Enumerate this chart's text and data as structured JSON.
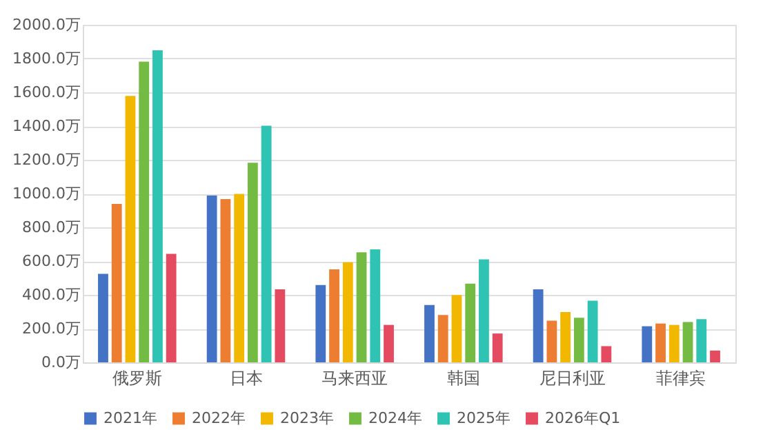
{
  "chart_data": {
    "type": "bar",
    "categories": [
      "俄罗斯",
      "日本",
      "马来西亚",
      "韩国",
      "尼日利亚",
      "菲律宾"
    ],
    "series": [
      {
        "name": "2021年",
        "color": "#4472c4",
        "values": [
          525,
          989,
          458,
          340,
          433,
          214
        ]
      },
      {
        "name": "2022年",
        "color": "#ed7d31",
        "values": [
          939,
          967,
          551,
          281,
          247,
          230
        ]
      },
      {
        "name": "2023年",
        "color": "#f2b800",
        "values": [
          1579,
          998,
          593,
          399,
          298,
          222
        ]
      },
      {
        "name": "2024年",
        "color": "#74bb44",
        "values": [
          1782,
          1183,
          652,
          466,
          264,
          239
        ]
      },
      {
        "name": "2025年",
        "color": "#2fc3b4",
        "values": [
          1849,
          1402,
          669,
          610,
          365,
          256
        ]
      },
      {
        "name": "2026年Q1",
        "color": "#e54b60",
        "values": [
          643,
          433,
          222,
          171,
          96,
          70
        ]
      }
    ],
    "ylim": [
      0,
      2000
    ],
    "yticks": [
      {
        "value": 0,
        "label": "0.0万"
      },
      {
        "value": 200,
        "label": "200.0万"
      },
      {
        "value": 400,
        "label": "400.0万"
      },
      {
        "value": 600,
        "label": "600.0万"
      },
      {
        "value": 800,
        "label": "800.0万"
      },
      {
        "value": 1000,
        "label": "1000.0万"
      },
      {
        "value": 1200,
        "label": "1200.0万"
      },
      {
        "value": 1400,
        "label": "1400.0万"
      },
      {
        "value": 1600,
        "label": "1600.0万"
      },
      {
        "value": 1800,
        "label": "1800.0万"
      },
      {
        "value": 2000,
        "label": "2000.0万"
      }
    ],
    "grid": "y",
    "legend": "bottom"
  }
}
